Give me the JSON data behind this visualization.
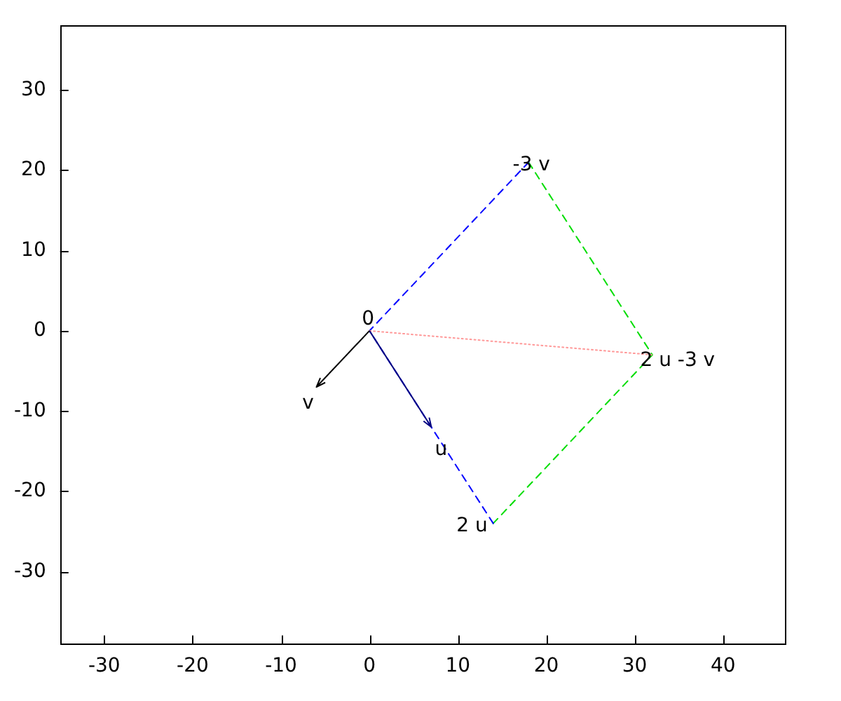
{
  "chart_data": {
    "type": "line",
    "xlim": [
      -35,
      47
    ],
    "ylim": [
      -39,
      38
    ],
    "xticks": [
      -30,
      -20,
      -10,
      0,
      10,
      20,
      30,
      40
    ],
    "yticks": [
      -30,
      -20,
      -10,
      0,
      10,
      20,
      30
    ],
    "grid": false,
    "legend": false,
    "marker": "none",
    "series": [
      {
        "color": "#ff9999",
        "line_style": "dotted",
        "x": [
          0,
          32
        ],
        "values": [
          0,
          -3
        ]
      },
      {
        "color": "#0000ff",
        "line_style": "dashed",
        "x": [
          14,
          0,
          18
        ],
        "values": [
          -24,
          0,
          21
        ]
      },
      {
        "color": "#00dd00",
        "line_style": "dashed",
        "x": [
          18,
          32,
          14
        ],
        "values": [
          21,
          -3,
          -24
        ]
      },
      {
        "color": "#000080",
        "line_style": "solid",
        "x": [
          0,
          7
        ],
        "values": [
          0,
          -12
        ]
      },
      {
        "color": "#000000",
        "line_style": "solid",
        "x": [
          0,
          -6
        ],
        "values": [
          0,
          -7
        ]
      }
    ],
    "annotations": [
      {
        "text": "0",
        "x": 0,
        "y": 0
      },
      {
        "text": "u",
        "x": 7,
        "y": -12
      },
      {
        "text": "v",
        "x": -6,
        "y": -7
      },
      {
        "text": "2 u",
        "x": 14,
        "y": -24
      },
      {
        "text": "-3 v",
        "x": 18,
        "y": 21
      },
      {
        "text": "2 u -3 v",
        "x": 32,
        "y": -3
      }
    ]
  }
}
